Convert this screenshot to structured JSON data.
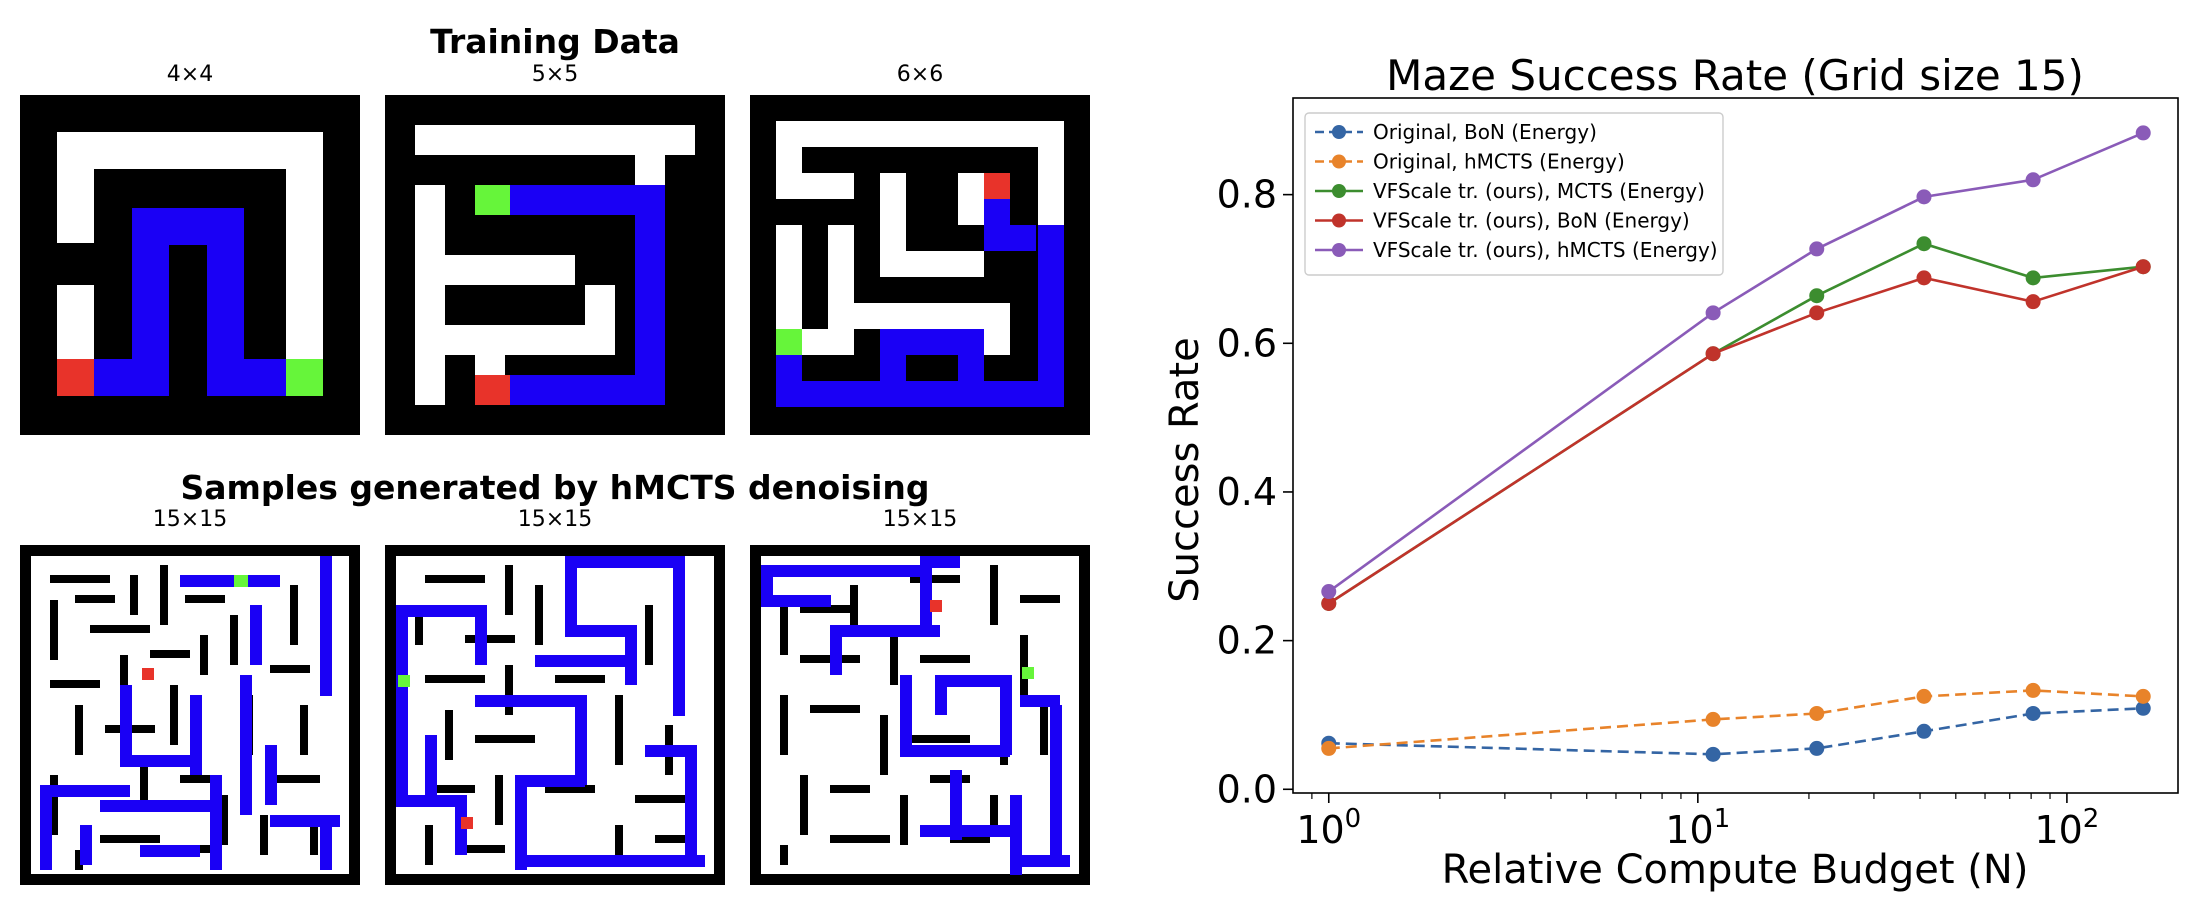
{
  "left_panel": {
    "training_title": "Training Data",
    "samples_title": "Samples generated by hMCTS denoising",
    "training_mazes": [
      {
        "label": "4×4"
      },
      {
        "label": "5×5"
      },
      {
        "label": "6×6"
      }
    ],
    "sample_mazes": [
      {
        "label": "15×15"
      },
      {
        "label": "15×15"
      },
      {
        "label": "15×15"
      }
    ]
  },
  "colors": {
    "wall": "#000000",
    "open": "#ffffff",
    "path": "#1a00f5",
    "start": "#e8332a",
    "goal": "#66f53a"
  },
  "chart_data": {
    "type": "line",
    "title": "Maze Success Rate (Grid size 15)",
    "xlabel": "Relative Compute Budget (N)",
    "ylabel": "Success Rate",
    "x_scale": "log",
    "xlim": [
      0.8,
      200
    ],
    "ylim": [
      -0.005,
      0.93
    ],
    "x_ticks": [
      {
        "value": 1,
        "base": "10",
        "exp": "0"
      },
      {
        "value": 10,
        "base": "10",
        "exp": "1"
      },
      {
        "value": 100,
        "base": "10",
        "exp": "2"
      }
    ],
    "y_ticks": [
      {
        "value": 0.0,
        "label": "0.0"
      },
      {
        "value": 0.2,
        "label": "0.2"
      },
      {
        "value": 0.4,
        "label": "0.4"
      },
      {
        "value": 0.6,
        "label": "0.6"
      },
      {
        "value": 0.8,
        "label": "0.8"
      }
    ],
    "grid": false,
    "legend_position": "top-left",
    "series": [
      {
        "name": "Original, BoN (Energy)",
        "color": "#3465a4",
        "dashed": true,
        "x": [
          1,
          11,
          21,
          41,
          81,
          161
        ],
        "y": [
          0.062,
          0.047,
          0.055,
          0.078,
          0.102,
          0.109
        ]
      },
      {
        "name": "Original, hMCTS (Energy)",
        "color": "#e8832a",
        "dashed": true,
        "x": [
          1,
          11,
          21,
          41,
          81,
          161
        ],
        "y": [
          0.055,
          0.094,
          0.102,
          0.125,
          0.133,
          0.125
        ]
      },
      {
        "name": "VFScale tr. (ours), MCTS (Energy)",
        "color": "#3c8d2f",
        "dashed": false,
        "x": [
          1,
          11,
          21,
          41,
          81,
          161
        ],
        "y": [
          0.25,
          0.586,
          0.664,
          0.734,
          0.688,
          0.703
        ]
      },
      {
        "name": "VFScale tr. (ours), BoN (Energy)",
        "color": "#c0332b",
        "dashed": false,
        "x": [
          1,
          11,
          21,
          41,
          81,
          161
        ],
        "y": [
          0.25,
          0.586,
          0.641,
          0.688,
          0.656,
          0.703
        ]
      },
      {
        "name": "VFScale tr. (ours), hMCTS (Energy)",
        "color": "#8a5bb8",
        "dashed": false,
        "x": [
          1,
          11,
          21,
          41,
          81,
          161
        ],
        "y": [
          0.266,
          0.641,
          0.727,
          0.797,
          0.82,
          0.883
        ]
      }
    ]
  }
}
